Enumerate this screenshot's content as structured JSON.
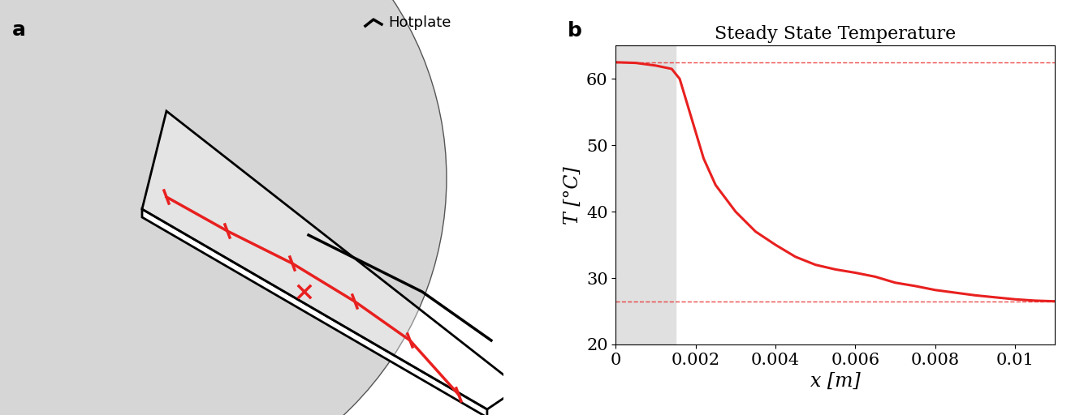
{
  "panels": [
    {
      "label": "a",
      "annotation": "Hotplate"
    },
    {
      "label": "b"
    }
  ],
  "chart_data": {
    "type": "line",
    "title": "Steady State Temperature",
    "x_label": "x [m]",
    "y_label": "T [°C]",
    "x": [
      0,
      0.0005,
      0.001,
      0.0014,
      0.0016,
      0.0018,
      0.002,
      0.0022,
      0.0025,
      0.003,
      0.0035,
      0.004,
      0.0045,
      0.005,
      0.0055,
      0.006,
      0.0065,
      0.007,
      0.0075,
      0.008,
      0.0085,
      0.009,
      0.0095,
      0.01,
      0.0105,
      0.011
    ],
    "values": [
      62.5,
      62.4,
      62.0,
      61.5,
      60.0,
      56.0,
      52.0,
      48.0,
      44.0,
      40.0,
      37.0,
      35.0,
      33.2,
      32.0,
      31.3,
      30.8,
      30.2,
      29.3,
      28.8,
      28.2,
      27.8,
      27.4,
      27.1,
      26.8,
      26.6,
      26.5
    ],
    "color": "#e8201f",
    "line_style": "solid",
    "reference_lines": [
      62.5,
      26.5
    ],
    "shaded_region": [
      0,
      0.0015
    ],
    "xlim": [
      0,
      0.011
    ],
    "ylim": [
      20,
      65
    ],
    "xticks": [
      0,
      0.002,
      0.004,
      0.006,
      0.008,
      0.01
    ],
    "yticks": [
      20,
      30,
      40,
      50,
      60
    ],
    "grid": false
  }
}
